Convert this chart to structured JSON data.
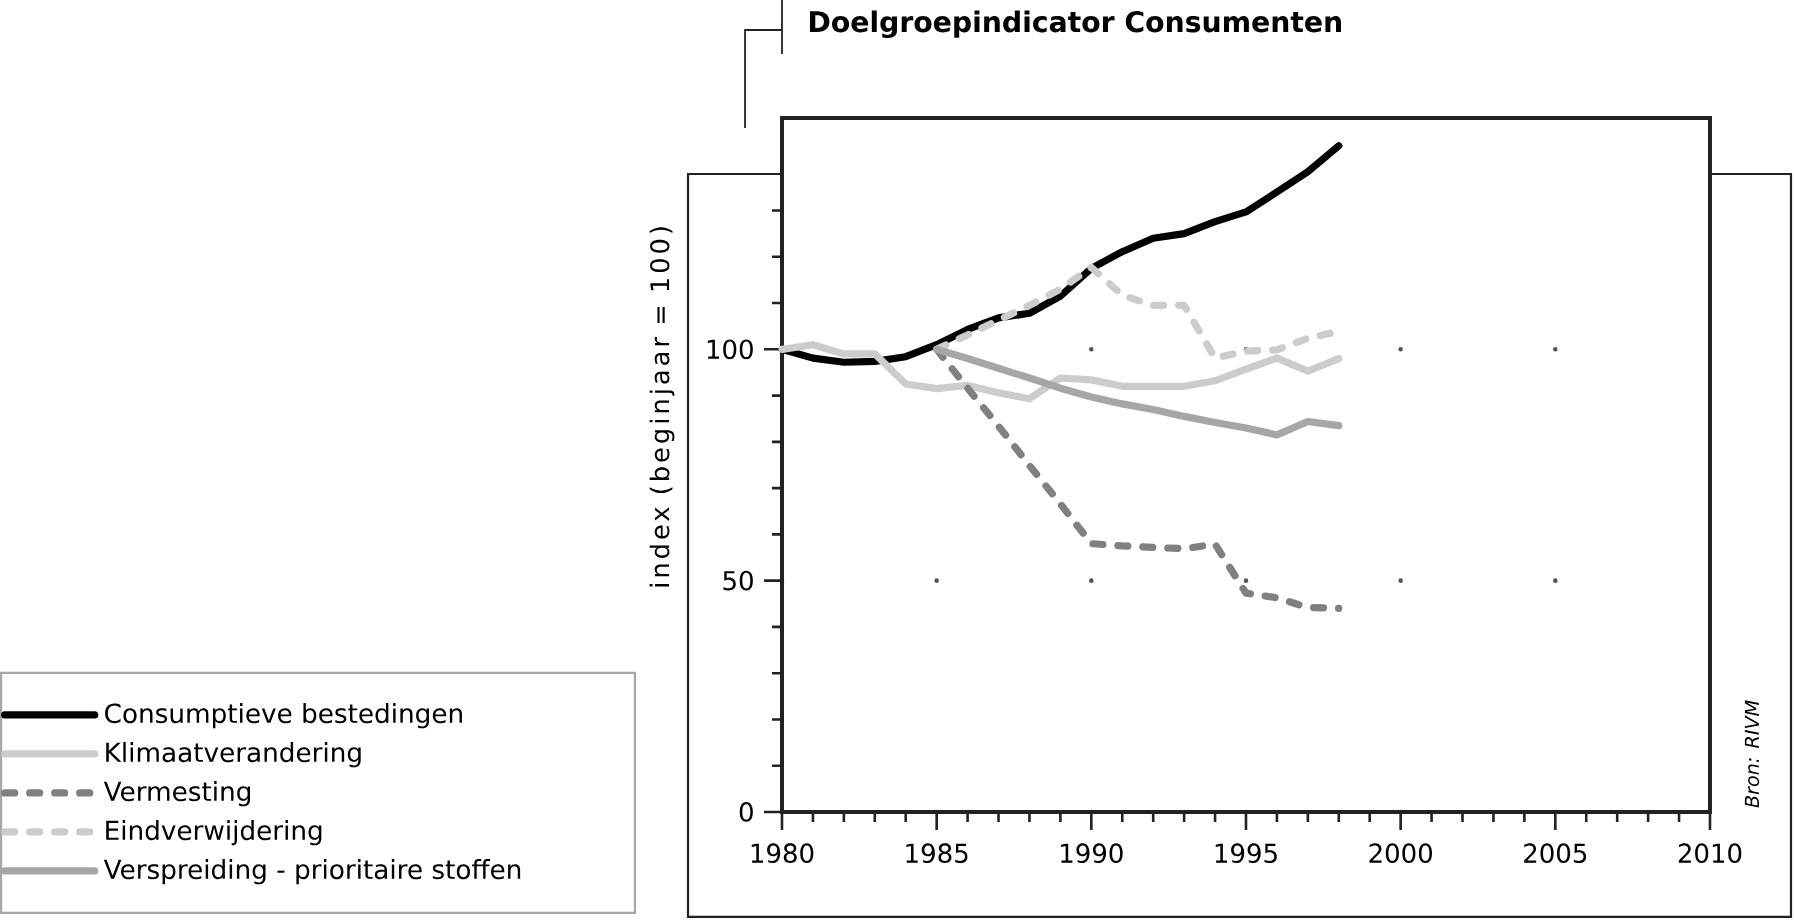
{
  "chart_data": {
    "type": "line",
    "title": "Doelgroepindicator Consumenten",
    "ylabel": "index (beginjaar = 100)",
    "annotations": [
      "Bron: RIVM"
    ],
    "xlim": [
      1980,
      2010
    ],
    "xticks": [
      1980,
      {
        "value": 1981,
        "label": null
      },
      {
        "value": 1982,
        "label": null
      },
      {
        "value": 1983,
        "label": null
      },
      {
        "value": 1984,
        "label": null
      },
      1985,
      {
        "value": 1986,
        "label": null
      },
      {
        "value": 1987,
        "label": null
      },
      {
        "value": 1988,
        "label": null
      },
      {
        "value": 1989,
        "label": null
      },
      1990,
      {
        "value": 1991,
        "label": null
      },
      {
        "value": 1992,
        "label": null
      },
      {
        "value": 1993,
        "label": null
      },
      {
        "value": 1994,
        "label": null
      },
      1995,
      {
        "value": 1996,
        "label": null
      },
      {
        "value": 1997,
        "label": null
      },
      {
        "value": 1998,
        "label": null
      },
      {
        "value": 1999,
        "label": null
      },
      2000,
      {
        "value": 2001,
        "label": null
      },
      {
        "value": 2002,
        "label": null
      },
      {
        "value": 2003,
        "label": null
      },
      {
        "value": 2004,
        "label": null
      },
      2005,
      {
        "value": 2006,
        "label": null
      },
      {
        "value": 2007,
        "label": null
      },
      {
        "value": 2008,
        "label": null
      },
      {
        "value": 2009,
        "label": null
      },
      2010
    ],
    "ylim": [
      0,
      150
    ],
    "yticks": [
      0,
      {
        "value": 10,
        "label": null
      },
      {
        "value": 20,
        "label": null
      },
      {
        "value": 30,
        "label": null
      },
      {
        "value": 40,
        "label": null
      },
      50,
      {
        "value": 60,
        "label": null
      },
      {
        "value": 70,
        "label": null
      },
      {
        "value": 80,
        "label": null
      },
      {
        "value": 90,
        "label": null
      },
      100,
      {
        "value": 110,
        "label": null
      },
      {
        "value": 120,
        "label": null
      },
      {
        "value": 130,
        "label": null
      }
    ],
    "grid": true,
    "legend": "bottom left",
    "series": [
      {
        "name": "Consumptieve bestedingen",
        "color": "#000000",
        "line_style": "solid",
        "x": [
          1980,
          1981,
          1982,
          1983,
          1984,
          1985,
          1986,
          1987,
          1988,
          1989,
          1990,
          1991,
          1992,
          1993,
          1994,
          1995,
          1996,
          1997,
          1998
        ],
        "values": [
          100,
          98.1,
          97.2,
          97.4,
          98.4,
          101,
          104.3,
          106.8,
          107.8,
          111.5,
          117.5,
          121.1,
          124,
          125,
          127.6,
          129.7,
          134,
          138.4,
          144
        ]
      },
      {
        "name": "Klimaatverandering",
        "color": "#cccccc",
        "line_style": "solid",
        "x": [
          1980,
          1981,
          1982,
          1983,
          1984,
          1985,
          1986,
          1987,
          1988,
          1989,
          1990,
          1991,
          1992,
          1993,
          1994,
          1995,
          1996,
          1997,
          1998
        ],
        "values": [
          100,
          101,
          99,
          99,
          92.5,
          91.5,
          92.2,
          90.6,
          89.3,
          93.8,
          93.4,
          92,
          92,
          92,
          93.2,
          95.7,
          98.1,
          95.3,
          98
        ]
      },
      {
        "name": "Vermesting",
        "color": "#808080",
        "line_style": "dashed",
        "x": [
          1985,
          1986,
          1987,
          1988,
          1989,
          1990,
          1991,
          1992,
          1993,
          1994,
          1995,
          1996,
          1997,
          1998
        ],
        "values": [
          100,
          91.6,
          83.4,
          74.9,
          66.6,
          58,
          57.5,
          57.2,
          56.9,
          57.9,
          47.3,
          46.3,
          44.2,
          44
        ]
      },
      {
        "name": "Eindverwijdering",
        "color": "#cccccc",
        "line_style": "dashed",
        "x": [
          1985,
          1986,
          1987,
          1988,
          1989,
          1990,
          1991,
          1992,
          1993,
          1994,
          1995,
          1996,
          1997,
          1998
        ],
        "values": [
          100,
          103.1,
          106.3,
          109.5,
          113,
          117.7,
          111.7,
          109.5,
          109.5,
          98.1,
          99.6,
          99.9,
          102.4,
          103.9
        ]
      },
      {
        "name": "Verspreiding - prioritaire stoffen",
        "color": "#a6a6a6",
        "line_style": "solid",
        "x": [
          1985,
          1986,
          1987,
          1988,
          1989,
          1990,
          1991,
          1992,
          1993,
          1994,
          1995,
          1996,
          1997,
          1998
        ],
        "values": [
          100,
          98,
          95.9,
          93.8,
          91.6,
          89.7,
          88.2,
          87,
          85.5,
          84.2,
          83,
          81.5,
          84.4,
          83.5
        ]
      }
    ]
  }
}
